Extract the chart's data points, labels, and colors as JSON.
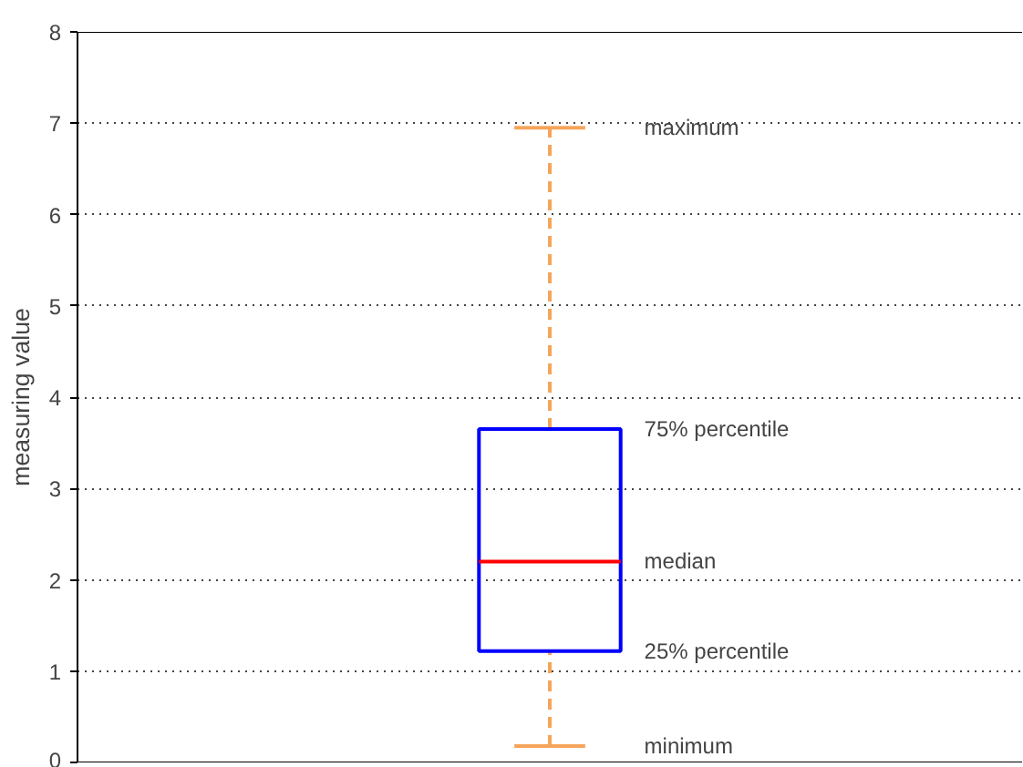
{
  "chart_data": {
    "type": "box",
    "categories": [
      null
    ],
    "ylabel": "measuring value",
    "ylim": [
      0,
      8
    ],
    "yticks": [
      0,
      1,
      2,
      3,
      4,
      5,
      6,
      7,
      8
    ],
    "grid": "y",
    "series": [
      {
        "color": "#0000ff",
        "boxes": [
          {
            "low": 0.18,
            "q1": 1.22,
            "median": 2.2,
            "q3": 3.65,
            "high": 6.95
          }
        ]
      }
    ],
    "annotations": [
      "maximum",
      "75% percentile",
      "median",
      "25% percentile",
      "minimum"
    ]
  }
}
